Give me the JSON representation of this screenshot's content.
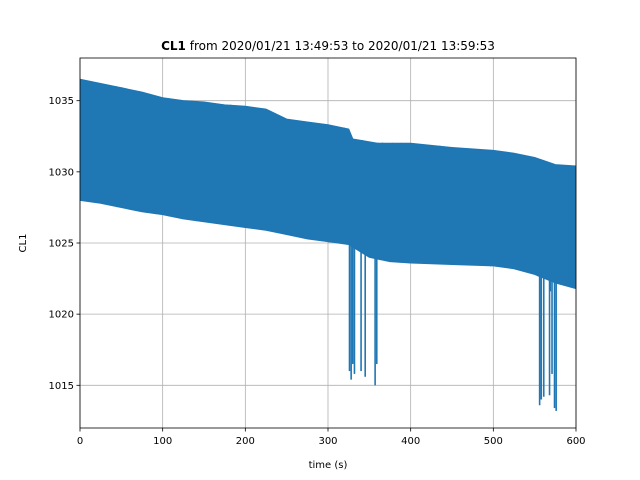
{
  "chart_data": {
    "type": "line",
    "title_bold": "CL1",
    "title_rest": " from 2020/01/21 13:49:53 to 2020/01/21 13:59:53",
    "xlabel": "time (s)",
    "ylabel": "CL1",
    "xlim": [
      0,
      600
    ],
    "ylim": [
      1012,
      1038
    ],
    "xticks": [
      0,
      100,
      200,
      300,
      400,
      500,
      600
    ],
    "yticks": [
      1015,
      1020,
      1025,
      1030,
      1035
    ],
    "grid": true,
    "series": [
      {
        "color": "#1f77b4",
        "upper": [
          [
            0,
            1036.5
          ],
          [
            25,
            1036.2
          ],
          [
            50,
            1035.9
          ],
          [
            75,
            1035.6
          ],
          [
            100,
            1035.2
          ],
          [
            125,
            1035.0
          ],
          [
            150,
            1034.9
          ],
          [
            175,
            1034.7
          ],
          [
            200,
            1034.6
          ],
          [
            225,
            1034.4
          ],
          [
            250,
            1033.7
          ],
          [
            275,
            1033.5
          ],
          [
            300,
            1033.3
          ],
          [
            325,
            1033.0
          ],
          [
            330,
            1032.3
          ],
          [
            360,
            1032.0
          ],
          [
            400,
            1032.0
          ],
          [
            450,
            1031.7
          ],
          [
            500,
            1031.5
          ],
          [
            525,
            1031.3
          ],
          [
            550,
            1031.0
          ],
          [
            575,
            1030.5
          ],
          [
            600,
            1030.4
          ]
        ],
        "lower": [
          [
            0,
            1028.0
          ],
          [
            25,
            1027.8
          ],
          [
            50,
            1027.5
          ],
          [
            75,
            1027.2
          ],
          [
            100,
            1027.0
          ],
          [
            125,
            1026.7
          ],
          [
            150,
            1026.5
          ],
          [
            175,
            1026.3
          ],
          [
            200,
            1026.1
          ],
          [
            225,
            1025.9
          ],
          [
            250,
            1025.6
          ],
          [
            275,
            1025.3
          ],
          [
            300,
            1025.1
          ],
          [
            325,
            1024.9
          ],
          [
            350,
            1024.0
          ],
          [
            375,
            1023.7
          ],
          [
            400,
            1023.6
          ],
          [
            450,
            1023.5
          ],
          [
            500,
            1023.4
          ],
          [
            525,
            1023.2
          ],
          [
            550,
            1022.8
          ],
          [
            575,
            1022.2
          ],
          [
            600,
            1021.8
          ]
        ],
        "spikes": [
          [
            326,
            1016.0
          ],
          [
            328,
            1015.4
          ],
          [
            330,
            1016.5
          ],
          [
            332,
            1015.8
          ],
          [
            340,
            1016.0
          ],
          [
            345,
            1015.6
          ],
          [
            357,
            1015.0
          ],
          [
            359,
            1016.5
          ],
          [
            556,
            1013.6
          ],
          [
            558,
            1014.0
          ],
          [
            561,
            1014.2
          ],
          [
            568,
            1014.3
          ],
          [
            569,
            1021.6
          ],
          [
            571,
            1015.8
          ],
          [
            574,
            1013.4
          ],
          [
            576,
            1013.2
          ]
        ]
      }
    ]
  }
}
